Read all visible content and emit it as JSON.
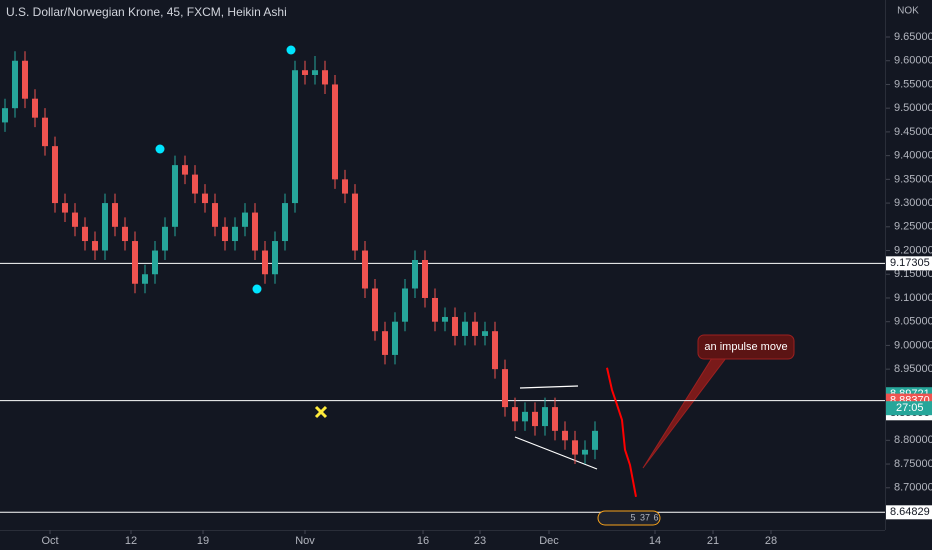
{
  "chart_data": {
    "type": "candlestick",
    "title": "U.S. Dollar/Norwegian Krone, 45, FXCM, Heikin Ashi",
    "currency": "NOK",
    "categories": [
      null,
      null,
      null,
      null,
      null,
      null,
      null,
      null,
      null,
      null,
      null,
      null,
      null,
      null,
      null,
      null,
      null,
      null,
      null,
      null,
      null,
      null,
      null,
      null,
      null,
      null,
      null,
      null,
      null,
      null,
      null,
      null,
      null,
      null,
      null,
      null,
      null,
      null,
      null,
      null,
      null,
      null,
      null,
      null,
      null,
      null,
      null,
      null,
      null,
      null,
      null,
      null,
      null,
      null,
      null,
      null,
      null,
      null,
      null,
      null
    ],
    "open": [
      9.47,
      9.5,
      9.6,
      9.52,
      9.48,
      9.42,
      9.3,
      9.28,
      9.25,
      9.22,
      9.2,
      9.3,
      9.25,
      9.22,
      9.13,
      9.15,
      9.2,
      9.25,
      9.38,
      9.36,
      9.32,
      9.3,
      9.25,
      9.22,
      9.25,
      9.28,
      9.2,
      9.15,
      9.22,
      9.3,
      9.58,
      9.57,
      9.58,
      9.55,
      9.35,
      9.32,
      9.2,
      9.12,
      9.03,
      8.98,
      9.05,
      9.12,
      9.18,
      9.1,
      9.05,
      9.06,
      9.02,
      9.05,
      9.02,
      9.03,
      8.95,
      8.87,
      8.84,
      8.86,
      8.83,
      8.87,
      8.82,
      8.8,
      8.77,
      8.78
    ],
    "high": [
      9.52,
      9.62,
      9.62,
      9.54,
      9.5,
      9.44,
      9.32,
      9.3,
      9.27,
      9.24,
      9.32,
      9.32,
      9.27,
      9.24,
      9.17,
      9.22,
      9.27,
      9.4,
      9.4,
      9.38,
      9.34,
      9.32,
      9.27,
      9.27,
      9.3,
      9.3,
      9.22,
      9.24,
      9.32,
      9.6,
      9.6,
      9.61,
      9.6,
      9.57,
      9.37,
      9.34,
      9.22,
      9.14,
      9.05,
      9.07,
      9.14,
      9.2,
      9.2,
      9.12,
      9.08,
      9.08,
      9.07,
      9.07,
      9.05,
      9.05,
      8.97,
      8.89,
      8.88,
      8.88,
      8.89,
      8.89,
      8.84,
      8.82,
      8.8,
      8.84
    ],
    "low": [
      9.45,
      9.48,
      9.5,
      9.46,
      9.4,
      9.28,
      9.26,
      9.23,
      9.2,
      9.18,
      9.18,
      9.23,
      9.2,
      9.11,
      9.11,
      9.13,
      9.18,
      9.23,
      9.34,
      9.3,
      9.28,
      9.23,
      9.2,
      9.2,
      9.23,
      9.18,
      9.13,
      9.13,
      9.2,
      9.28,
      9.55,
      9.55,
      9.53,
      9.33,
      9.3,
      9.18,
      9.1,
      9.01,
      8.96,
      8.96,
      9.03,
      9.1,
      9.08,
      9.03,
      9.03,
      9.0,
      9.0,
      9.0,
      9.0,
      8.93,
      8.85,
      8.82,
      8.82,
      8.81,
      8.81,
      8.8,
      8.78,
      8.75,
      8.75,
      8.76
    ],
    "close": [
      9.5,
      9.6,
      9.52,
      9.48,
      9.42,
      9.3,
      9.28,
      9.25,
      9.22,
      9.2,
      9.3,
      9.25,
      9.22,
      9.13,
      9.15,
      9.2,
      9.25,
      9.38,
      9.36,
      9.32,
      9.3,
      9.25,
      9.22,
      9.25,
      9.28,
      9.2,
      9.15,
      9.22,
      9.3,
      9.58,
      9.57,
      9.58,
      9.55,
      9.35,
      9.32,
      9.2,
      9.12,
      9.03,
      8.98,
      9.05,
      9.12,
      9.18,
      9.1,
      9.05,
      9.06,
      9.02,
      9.05,
      9.02,
      9.03,
      8.95,
      8.87,
      8.84,
      8.86,
      8.83,
      8.87,
      8.82,
      8.8,
      8.77,
      8.78,
      8.82
    ],
    "up_color": "#26a69a",
    "down_color": "#ef5350",
    "xlim": [
      0,
      88.5
    ],
    "xticks": [
      {
        "value": 5.0,
        "label": "Oct"
      },
      {
        "value": 13.1,
        "label": "12"
      },
      {
        "value": 20.3,
        "label": "19"
      },
      {
        "value": 30.5,
        "label": "Nov"
      },
      {
        "value": 42.3,
        "label": "16"
      },
      {
        "value": 48.0,
        "label": "23"
      },
      {
        "value": 54.9,
        "label": "Dec"
      },
      {
        "value": 65.5,
        "label": "14"
      },
      {
        "value": 71.3,
        "label": "21"
      },
      {
        "value": 77.1,
        "label": "28"
      }
    ],
    "ylim": [
      8.611,
      9.728
    ],
    "yticks": [
      {
        "value": 8.7,
        "label": "8.70000"
      },
      {
        "value": 8.75,
        "label": "8.75000"
      },
      {
        "value": 8.8,
        "label": "8.80000"
      },
      {
        "value": 8.85,
        "label": "8.85000"
      },
      {
        "value": 8.9,
        "label": "8.90000"
      },
      {
        "value": 8.95,
        "label": "8.95000"
      },
      {
        "value": 9.0,
        "label": "9.00000"
      },
      {
        "value": 9.05,
        "label": "9.05000"
      },
      {
        "value": 9.1,
        "label": "9.10000"
      },
      {
        "value": 9.15,
        "label": "9.15000"
      },
      {
        "value": 9.2,
        "label": "9.20000"
      },
      {
        "value": 9.25,
        "label": "9.25000"
      },
      {
        "value": 9.3,
        "label": "9.30000"
      },
      {
        "value": 9.35,
        "label": "9.35000"
      },
      {
        "value": 9.4,
        "label": "9.40000"
      },
      {
        "value": 9.45,
        "label": "9.45000"
      },
      {
        "value": 9.5,
        "label": "9.50000"
      },
      {
        "value": 9.55,
        "label": "9.55000"
      },
      {
        "value": 9.6,
        "label": "9.60000"
      },
      {
        "value": 9.65,
        "label": "9.65000"
      }
    ],
    "hlines": [
      9.17305,
      8.8837,
      8.64829
    ],
    "price_labels": [
      {
        "value": 9.17305,
        "label": "9.17305",
        "color": "#ffffff"
      },
      {
        "value": 8.89721,
        "label": "8.89721",
        "color": "#26a69a"
      },
      {
        "value": 8.8837,
        "label": "8.88370",
        "color": "#ef5350"
      },
      {
        "value": 8.85696,
        "label": "8.85696",
        "color": "#ffffff"
      },
      {
        "value": 8.64829,
        "label": "8.64829",
        "color": "#ffffff"
      }
    ],
    "countdown": "27:05",
    "projection": {
      "color": "#ff0000",
      "x": [
        60.7,
        61.2,
        61.7,
        62.2,
        62.5,
        63.0,
        63.6
      ],
      "values": [
        8.953,
        8.906,
        8.875,
        8.843,
        8.78,
        8.748,
        8.681
      ]
    },
    "annotation": "an impulse move",
    "event_badges": [
      "5",
      "37",
      "6"
    ]
  }
}
